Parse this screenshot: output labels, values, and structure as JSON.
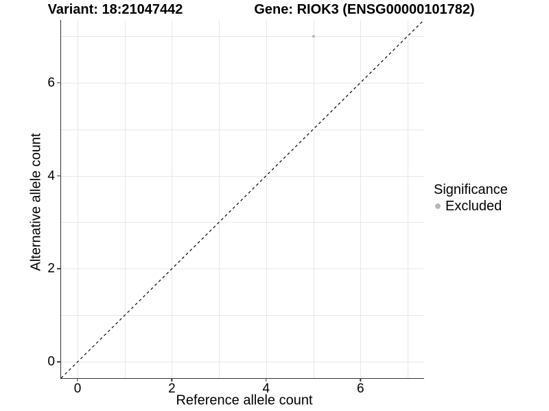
{
  "header": {
    "title_left": "Variant: 18:21047442",
    "title_right": "Gene: RIOK3 (ENSG00000101782)"
  },
  "colors": {
    "point": "#b8b8b8",
    "grid": "#e7e7e7",
    "axis_line": "#333333",
    "reference_line": "#000000",
    "text": "#000000"
  },
  "chart_data": {
    "type": "scatter",
    "title_left": "Variant: 18:21047442",
    "title_right": "Gene: RIOK3 (ENSG00000101782)",
    "xlabel": "Reference allele count",
    "ylabel": "Alternative allele count",
    "xlim": [
      -0.35,
      7.35
    ],
    "ylim": [
      -0.35,
      7.35
    ],
    "x_ticks": [
      0,
      2,
      4,
      6
    ],
    "y_ticks": [
      0,
      2,
      4,
      6
    ],
    "gridline_values": [
      0,
      1,
      2,
      3,
      4,
      5,
      6,
      7
    ],
    "grid": true,
    "points": [
      {
        "x": 5,
        "y": 7,
        "series": "Excluded"
      }
    ],
    "reference_line": {
      "kind": "abline",
      "slope": 1,
      "intercept": 0,
      "style": "dashed",
      "color": "#000000"
    },
    "legend": {
      "title": "Significance",
      "position": "right",
      "items": [
        {
          "label": "Excluded",
          "color": "#b8b8b8"
        }
      ]
    }
  }
}
